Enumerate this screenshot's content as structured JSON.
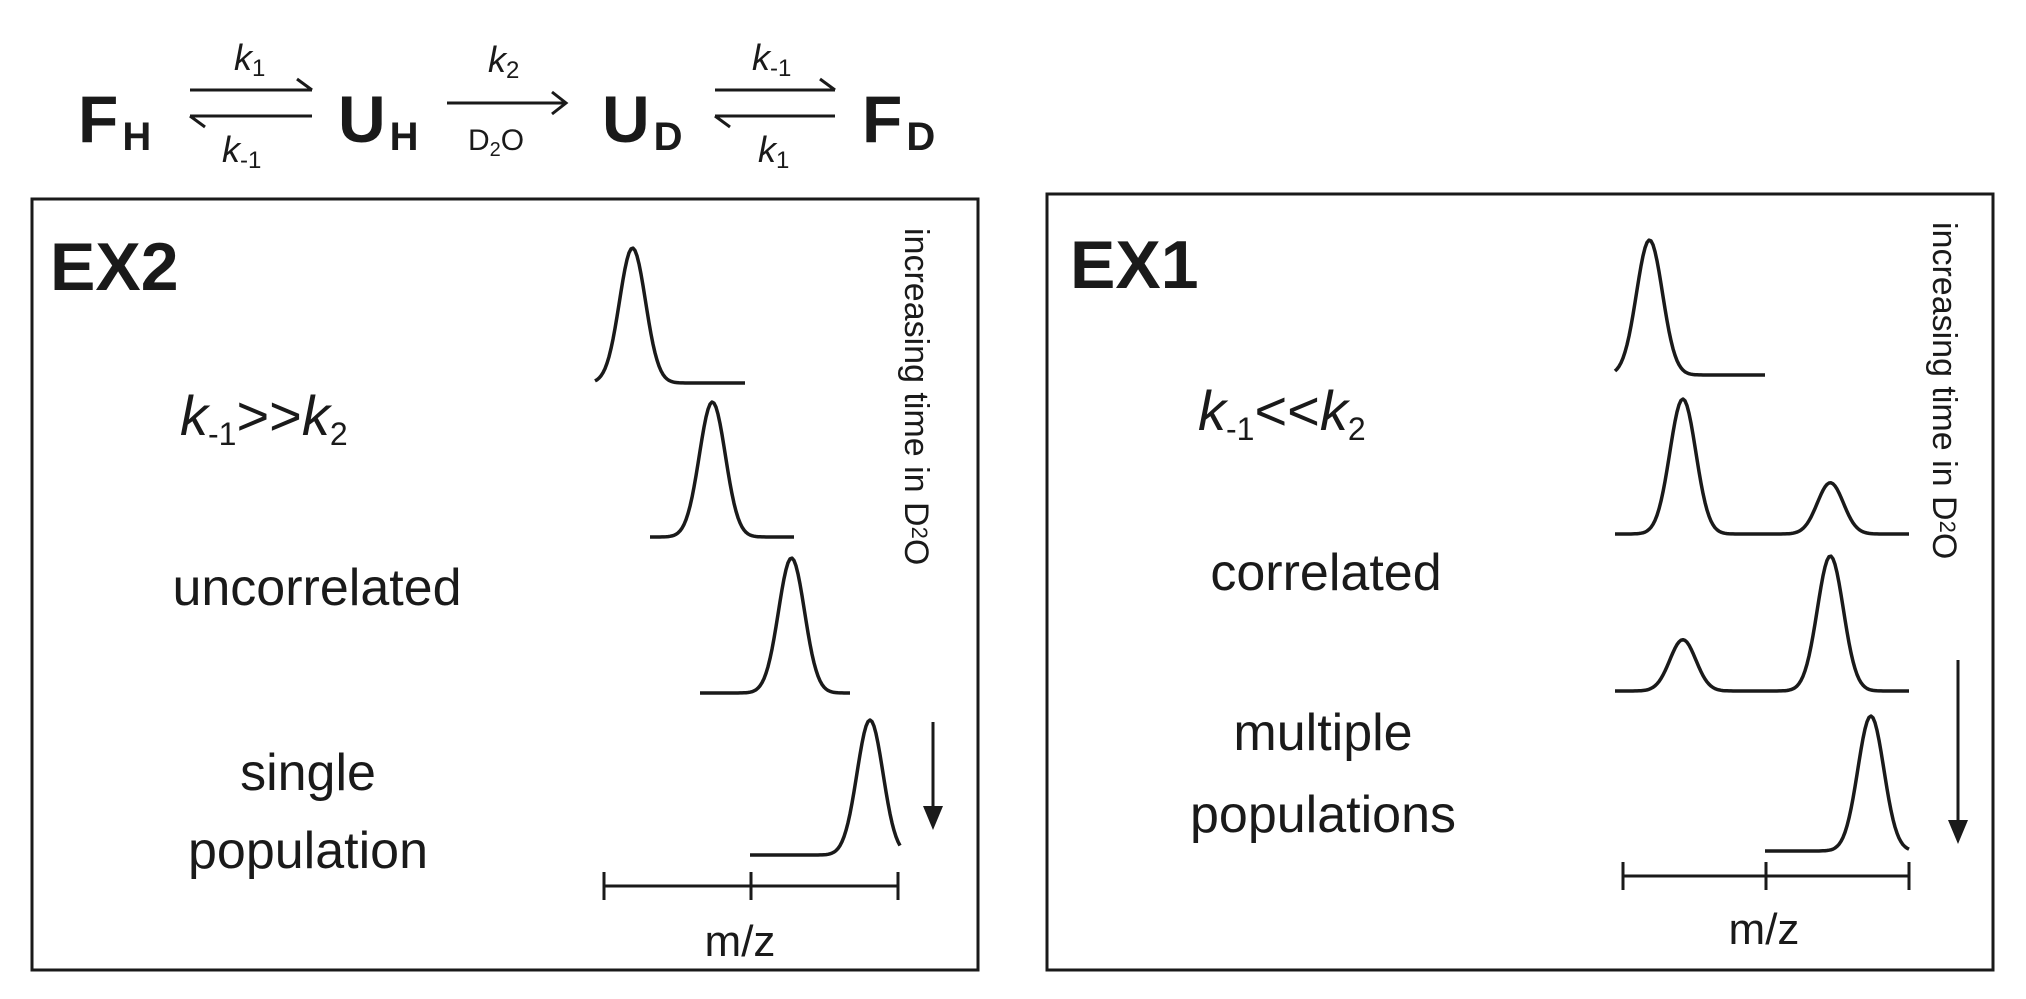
{
  "scheme": {
    "species": [
      {
        "base": "F",
        "sub": "H"
      },
      {
        "base": "U",
        "sub": "H"
      },
      {
        "base": "U",
        "sub": "D"
      },
      {
        "base": "F",
        "sub": "D"
      }
    ],
    "arrows": [
      {
        "kind": "equilibrium",
        "top": {
          "k": "k",
          "sub": "1"
        },
        "bottom": {
          "k": "k",
          "sub": "-1"
        }
      },
      {
        "kind": "forward",
        "top": {
          "k": "k",
          "sub": "2"
        },
        "bottom": {
          "text": "D",
          "sub": "2",
          "after": "O"
        }
      },
      {
        "kind": "equilibrium",
        "top": {
          "k": "k",
          "sub": "-1"
        },
        "bottom": {
          "k": "k",
          "sub": "1"
        }
      }
    ]
  },
  "panels": [
    {
      "id": "ex2",
      "title": "EX2",
      "condition": {
        "k1": "k",
        "k1_sub": "-1",
        "relation": ">>",
        "k2": "k",
        "k2_sub": "2"
      },
      "label": "uncorrelated",
      "population_lines": [
        "single",
        "population"
      ],
      "time_label": {
        "text": "increasing time in D",
        "sub": "2",
        "after": "O"
      },
      "axis_label": "m/z",
      "spectra": [
        {
          "peaks": [
            {
              "pos": 0.25,
              "height": 1.0
            }
          ]
        },
        {
          "peaks": [
            {
              "pos": 0.43,
              "height": 1.0
            }
          ]
        },
        {
          "peaks": [
            {
              "pos": 0.61,
              "height": 1.0
            }
          ]
        },
        {
          "peaks": [
            {
              "pos": 0.8,
              "height": 1.0
            }
          ]
        }
      ]
    },
    {
      "id": "ex1",
      "title": "EX1",
      "condition": {
        "k1": "k",
        "k1_sub": "-1",
        "relation": "<<",
        "k2": "k",
        "k2_sub": "2"
      },
      "label": "correlated",
      "population_lines": [
        "multiple",
        "populations"
      ],
      "time_label": {
        "text": "increasing time in D",
        "sub": "2",
        "after": "O"
      },
      "axis_label": "m/z",
      "spectra": [
        {
          "peaks": [
            {
              "pos": 0.23,
              "height": 1.0
            }
          ]
        },
        {
          "peaks": [
            {
              "pos": 0.23,
              "height": 1.0
            },
            {
              "pos": 0.73,
              "height": 0.38
            }
          ]
        },
        {
          "peaks": [
            {
              "pos": 0.23,
              "height": 0.38
            },
            {
              "pos": 0.73,
              "height": 1.0
            }
          ]
        },
        {
          "peaks": [
            {
              "pos": 0.73,
              "height": 1.0
            }
          ]
        }
      ]
    }
  ]
}
